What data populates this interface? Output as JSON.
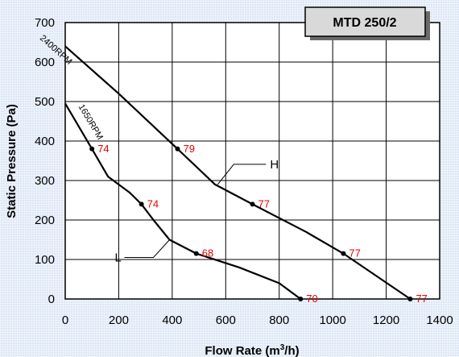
{
  "chart_data": {
    "type": "line",
    "title": "MTD 250/2",
    "xlabel": "Flow Rate (m³/h)",
    "xlabel_parts": {
      "main": "Flow Rate (m",
      "sup": "3",
      "end": "/h)"
    },
    "ylabel": "Static Pressure (Pa)",
    "xlim": [
      0,
      1400
    ],
    "ylim": [
      0,
      700
    ],
    "xticks": [
      0,
      200,
      400,
      600,
      800,
      1000,
      1200,
      1400
    ],
    "yticks": [
      0,
      100,
      200,
      300,
      400,
      500,
      600,
      700
    ],
    "grid": true,
    "series": [
      {
        "name": "2400RPM",
        "x": [
          0,
          200,
          420,
          560,
          700,
          900,
          1040,
          1290
        ],
        "y": [
          640,
          520,
          380,
          290,
          240,
          170,
          115,
          0
        ],
        "points": [
          {
            "x": 420,
            "y": 380,
            "label": "79"
          },
          {
            "x": 700,
            "y": 240,
            "label": "77"
          },
          {
            "x": 1040,
            "y": 115,
            "label": "77"
          },
          {
            "x": 1290,
            "y": 0,
            "label": "77"
          }
        ]
      },
      {
        "name": "1650RPM",
        "x": [
          0,
          100,
          160,
          240,
          285,
          330,
          390,
          490,
          650,
          800,
          880
        ],
        "y": [
          495,
          380,
          310,
          270,
          240,
          200,
          150,
          115,
          80,
          40,
          0
        ],
        "points": [
          {
            "x": 100,
            "y": 380,
            "label": "74"
          },
          {
            "x": 285,
            "y": 240,
            "label": "74"
          },
          {
            "x": 490,
            "y": 115,
            "label": "68"
          },
          {
            "x": 880,
            "y": 0,
            "label": "70"
          }
        ]
      }
    ],
    "annotations": [
      {
        "text": "H",
        "series": 0,
        "at": {
          "x": 570,
          "y": 290
        }
      },
      {
        "text": "L",
        "series": 1,
        "at": {
          "x": 390,
          "y": 150
        }
      }
    ]
  }
}
